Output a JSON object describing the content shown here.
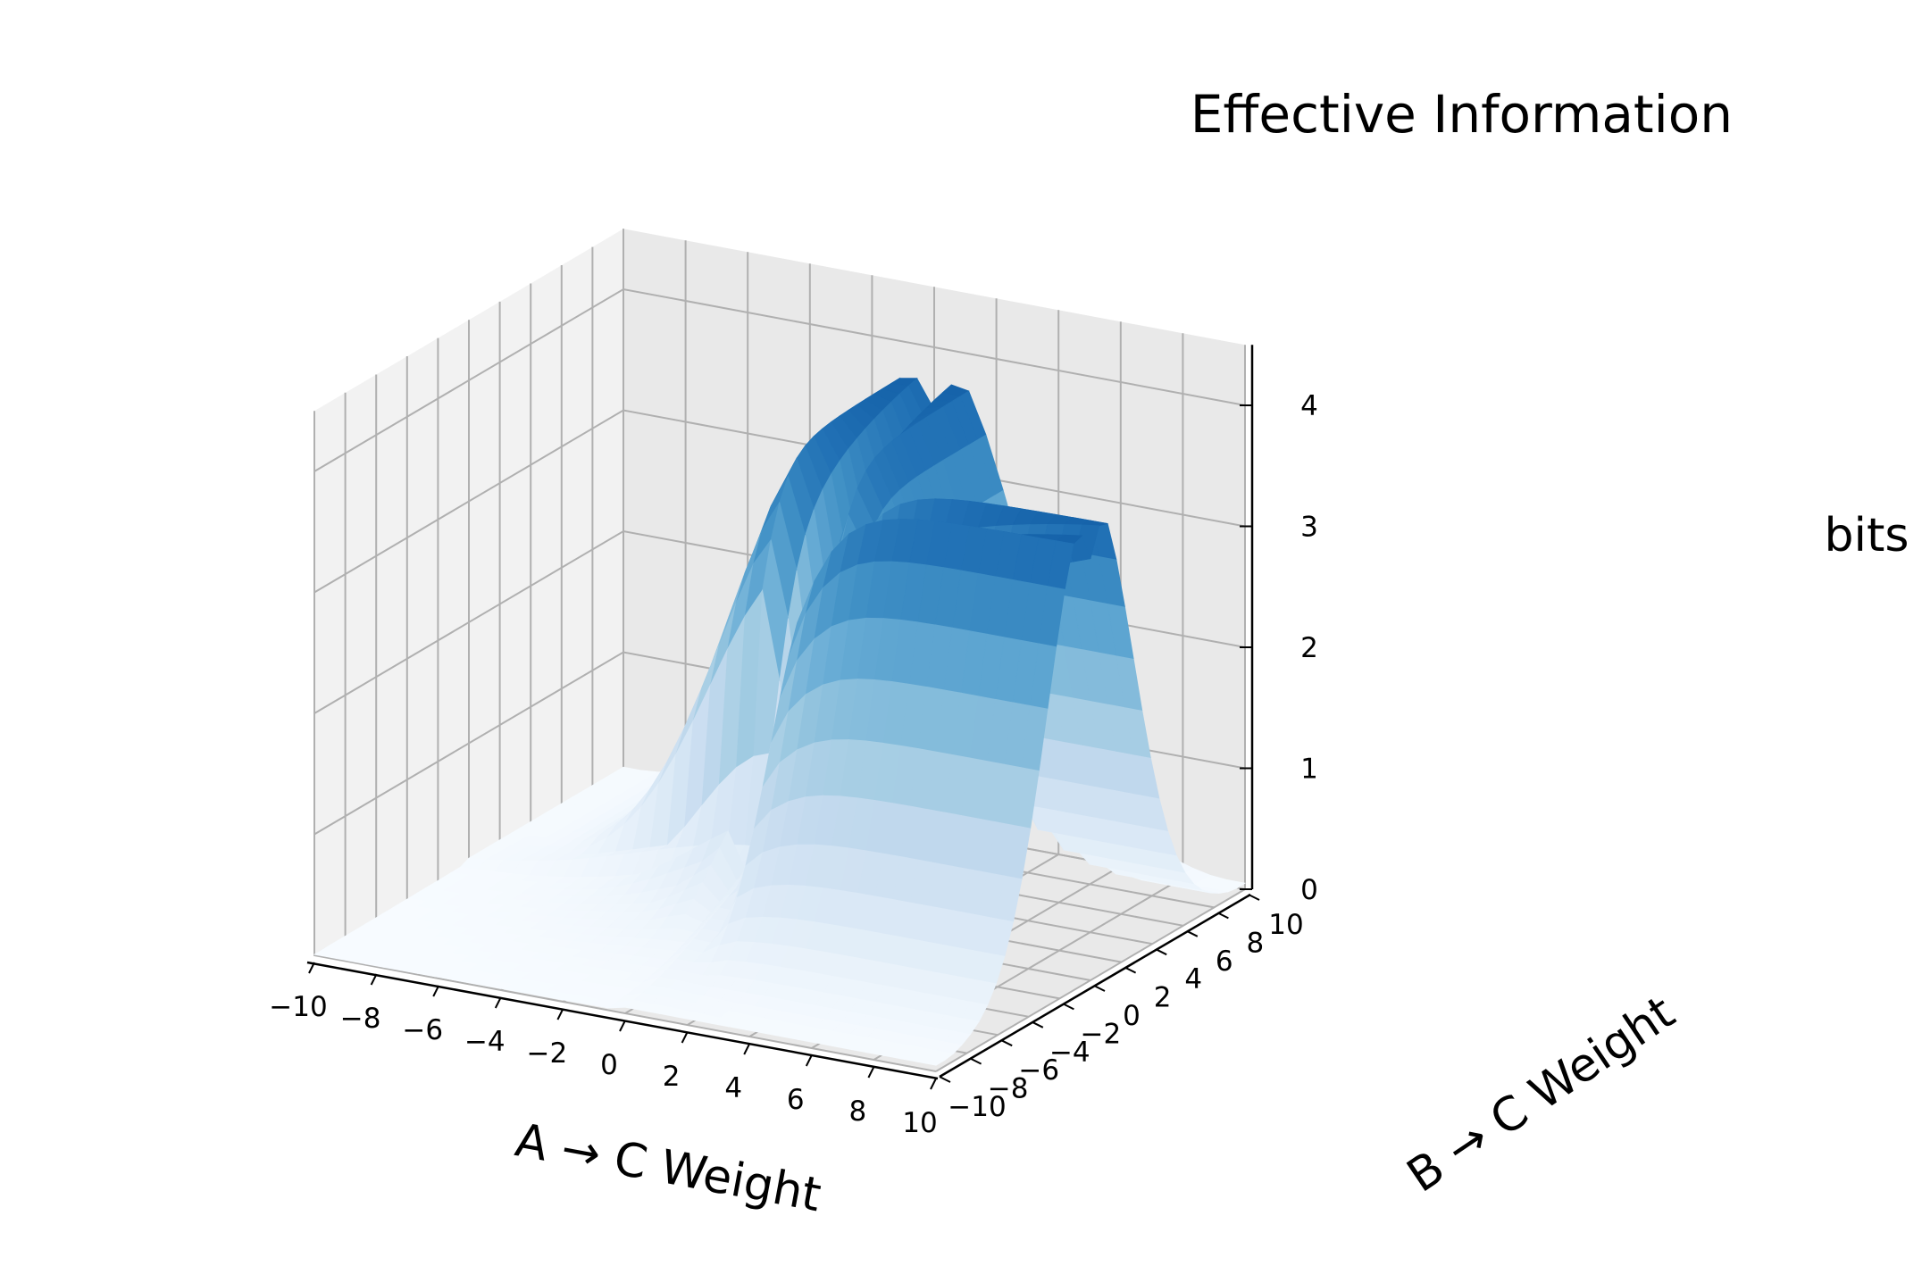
{
  "chart_data": {
    "type": "surface3d",
    "title": "Effective Information",
    "xlabel": "A → C Weight",
    "ylabel": "B → C Weight",
    "zlabel": "bits",
    "xlim": [
      -10,
      10
    ],
    "ylim": [
      -10,
      10
    ],
    "zlim": [
      0,
      4.5
    ],
    "xticks": [
      -10,
      -8,
      -6,
      -4,
      -2,
      0,
      2,
      4,
      6,
      8,
      10
    ],
    "yticks": [
      -10,
      -8,
      -6,
      -4,
      -2,
      0,
      2,
      4,
      6,
      8,
      10
    ],
    "zticks": [
      0,
      1,
      2,
      3,
      4
    ],
    "grid": true,
    "colormap": "Blues",
    "colors": {
      "pane_light": "#f2f2f2",
      "pane_dark": "#e9e9e9",
      "grid": "#b0b0b0"
    },
    "description_points": [
      {
        "x": -10,
        "y": -10,
        "z": 0.0
      },
      {
        "x": 0,
        "y": 0,
        "z": 0.8
      },
      {
        "x": -10,
        "y": 0,
        "z": 0.1
      },
      {
        "x": 0,
        "y": 10,
        "z": 4.2
      },
      {
        "x": 10,
        "y": 0,
        "z": 4.2
      },
      {
        "x": 10,
        "y": 10,
        "z": 0.1
      },
      {
        "x": 3,
        "y": 0,
        "z": 3.0
      },
      {
        "x": 0,
        "y": 3,
        "z": 3.0
      }
    ]
  }
}
